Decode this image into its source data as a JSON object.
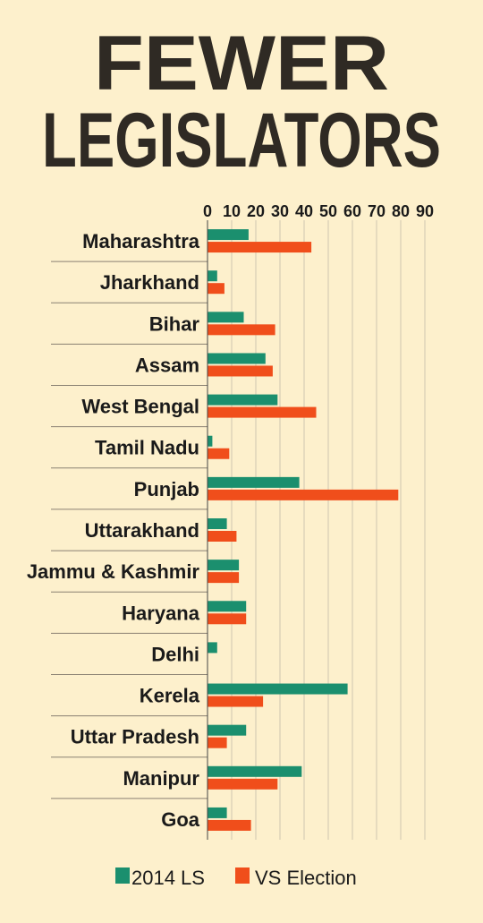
{
  "chart_data": {
    "type": "bar",
    "orientation": "horizontal",
    "title_line1": "FEWER",
    "title_line2": "LEGISLATORS",
    "categories": [
      "Maharashtra",
      "Jharkhand",
      "Bihar",
      "Assam",
      "West Bengal",
      "Tamil Nadu",
      "Punjab",
      "Uttarakhand",
      "Jammu & Kashmir",
      "Haryana",
      "Delhi",
      "Kerela",
      "Uttar Pradesh",
      "Manipur",
      "Goa"
    ],
    "series": [
      {
        "name": "2014 LS",
        "color": "#1b8f6e",
        "values": [
          17,
          4,
          15,
          24,
          29,
          2,
          38,
          8,
          13,
          16,
          4,
          58,
          16,
          39,
          8
        ]
      },
      {
        "name": "VS Election",
        "color": "#f04e1b",
        "values": [
          43,
          7,
          28,
          27,
          45,
          9,
          79,
          12,
          13,
          16,
          0,
          23,
          8,
          29,
          18
        ]
      }
    ],
    "xlim": [
      0,
      90
    ],
    "xticks": [
      0,
      10,
      20,
      30,
      40,
      50,
      60,
      70,
      80,
      90
    ],
    "grid": true,
    "legend_position": "bottom"
  }
}
